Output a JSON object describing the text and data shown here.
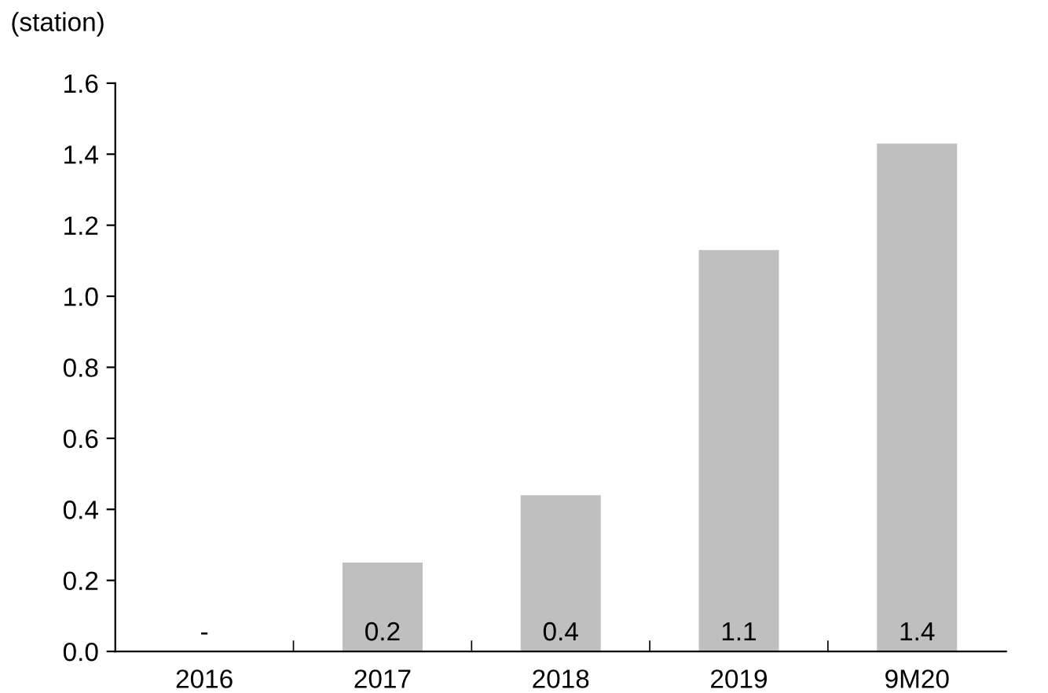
{
  "chart_data": {
    "type": "bar",
    "ylabel": "(station)",
    "categories": [
      "2016",
      "2017",
      "2018",
      "2019",
      "9M20"
    ],
    "values": [
      0,
      0.25,
      0.44,
      1.13,
      1.43
    ],
    "value_labels": [
      "-",
      "0.2",
      "0.4",
      "1.1",
      "1.4"
    ],
    "color": "#bfbfbf",
    "ylim": [
      0,
      1.6
    ],
    "yticks": [
      {
        "value": 0,
        "label": "0.0"
      },
      {
        "value": 0.2,
        "label": "0.2"
      },
      {
        "value": 0.4,
        "label": "0.4"
      },
      {
        "value": 0.6,
        "label": "0.6"
      },
      {
        "value": 0.8,
        "label": "0.8"
      },
      {
        "value": 1.0,
        "label": "1.0"
      },
      {
        "value": 1.2,
        "label": "1.2"
      },
      {
        "value": 1.4,
        "label": "1.4"
      },
      {
        "value": 1.6,
        "label": "1.6"
      }
    ],
    "grid": false
  }
}
